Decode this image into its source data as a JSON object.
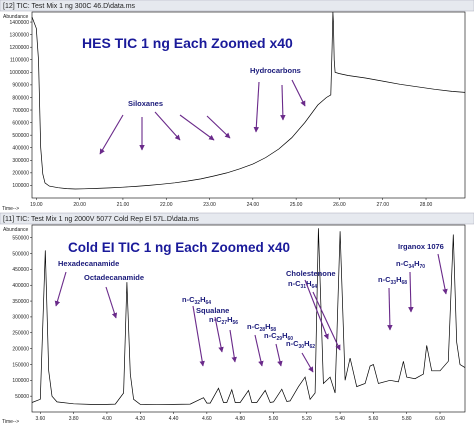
{
  "chart_data": [
    {
      "type": "line",
      "panel_title": "[12] TIC: Test Mix 1 ng 300C 46.D\\data.ms",
      "title": "HES TIC 1 ng Each Zoomed x40",
      "ylabel": "Abundance",
      "xlabel": "Time-->",
      "xlim": [
        18.9,
        28.9
      ],
      "ylim": [
        0,
        1480000
      ],
      "x_ticks": [
        "19.00",
        "20.00",
        "21.00",
        "22.00",
        "23.00",
        "24.00",
        "25.00",
        "26.00",
        "27.00",
        "28.00"
      ],
      "y_ticks": [
        "100000",
        "200000",
        "300000",
        "400000",
        "500000",
        "600000",
        "700000",
        "800000",
        "900000",
        "1000000",
        "1100000",
        "1200000",
        "1300000",
        "1400000"
      ],
      "series": [
        {
          "x": [
            18.9,
            19.0,
            19.05,
            19.1,
            19.15,
            19.2,
            19.3,
            19.5,
            19.7,
            19.9,
            20.1,
            20.4,
            20.7,
            21.0,
            21.3,
            21.6,
            21.9,
            22.2,
            22.5,
            22.8,
            23.1,
            23.4,
            23.7,
            24.0,
            24.3,
            24.6,
            24.9,
            25.2,
            25.5,
            25.7,
            25.8,
            25.83,
            25.85,
            25.86,
            25.88,
            25.9,
            26.0,
            26.2,
            26.6,
            27.0,
            27.4,
            27.8,
            28.2,
            28.6,
            28.9
          ],
          "values": [
            1440000,
            1350000,
            1100000,
            400000,
            190000,
            120000,
            95000,
            82000,
            75000,
            72000,
            73000,
            76000,
            80000,
            86000,
            92000,
            100000,
            110000,
            121000,
            135000,
            152000,
            175000,
            200000,
            232000,
            270000,
            322000,
            390000,
            480000,
            600000,
            740000,
            800000,
            820000,
            1200000,
            1480000,
            1400000,
            1100000,
            1000000,
            990000,
            975000,
            955000,
            930000,
            905000,
            885000,
            865000,
            848000,
            840000
          ]
        }
      ],
      "annotations": [
        {
          "text": "Siloxanes",
          "arrows_to": [
            19.7,
            20.6,
            21.3,
            22.2,
            23.0
          ]
        },
        {
          "text": "Hydrocarbons",
          "arrows_to": [
            24.2,
            24.6,
            25.3
          ]
        }
      ]
    },
    {
      "type": "line",
      "panel_title": "[11] TIC: Test Mix 1 ng 2000V 5077 Cold Rep El 57L.D\\data.ms",
      "title": "Cold EI TIC 1 ng Each Zoomed x40",
      "ylabel": "Abundance",
      "xlabel": "Time-->",
      "xlim": [
        3.55,
        6.15
      ],
      "ylim": [
        0,
        590000
      ],
      "x_ticks": [
        "3.60",
        "3.80",
        "4.00",
        "4.20",
        "4.40",
        "4.60",
        "4.80",
        "5.00",
        "5.20",
        "5.40",
        "5.60",
        "5.80",
        "6.00"
      ],
      "y_ticks": [
        "50000",
        "100000",
        "150000",
        "200000",
        "250000",
        "300000",
        "350000",
        "400000",
        "450000",
        "500000",
        "550000"
      ],
      "series": [
        {
          "x": [
            3.55,
            3.6,
            3.63,
            3.65,
            3.67,
            3.7,
            3.8,
            3.9,
            4.0,
            4.05,
            4.1,
            4.12,
            4.14,
            4.16,
            4.2,
            4.3,
            4.4,
            4.5,
            4.58,
            4.6,
            4.62,
            4.67,
            4.7,
            4.72,
            4.75,
            4.77,
            4.8,
            4.85,
            4.87,
            4.9,
            4.95,
            4.98,
            5.0,
            5.05,
            5.08,
            5.1,
            5.15,
            5.19,
            5.22,
            5.25,
            5.27,
            5.3,
            5.34,
            5.37,
            5.4,
            5.43,
            5.46,
            5.5,
            5.55,
            5.58,
            5.6,
            5.63,
            5.7,
            5.75,
            5.78,
            5.8,
            5.85,
            5.9,
            5.92,
            5.95,
            6.0,
            6.05,
            6.08,
            6.1,
            6.12,
            6.15
          ],
          "values": [
            30000,
            40000,
            510000,
            130000,
            50000,
            32000,
            26000,
            24000,
            24000,
            25000,
            60000,
            410000,
            120000,
            40000,
            24000,
            23000,
            24000,
            25000,
            45000,
            28000,
            28000,
            75000,
            30000,
            30000,
            70000,
            30000,
            30000,
            68000,
            30000,
            30000,
            68000,
            30000,
            32000,
            72000,
            33000,
            35000,
            80000,
            110000,
            40000,
            60000,
            580000,
            90000,
            110000,
            60000,
            570000,
            100000,
            170000,
            80000,
            90000,
            145000,
            150000,
            90000,
            100000,
            95000,
            160000,
            110000,
            105000,
            120000,
            210000,
            130000,
            130000,
            160000,
            560000,
            220000,
            150000,
            140000
          ]
        }
      ],
      "annotations": [
        {
          "text": "Hexadecanamide"
        },
        {
          "text": "Octadecanamide"
        },
        {
          "text": "n-C32H64"
        },
        {
          "text": "Squalane"
        },
        {
          "text": "n-C27H56"
        },
        {
          "text": "n-C28H58"
        },
        {
          "text": "n-C29H60"
        },
        {
          "text": "n-C30H62"
        },
        {
          "text": "Cholestenone"
        },
        {
          "text": "n-C31H64"
        },
        {
          "text": "n-C33H68"
        },
        {
          "text": "n-C34H70"
        },
        {
          "text": "Irganox 1076"
        }
      ]
    }
  ],
  "labels": {
    "top_title": "HES TIC 1 ng Each Zoomed x40",
    "siloxanes": "Siloxanes",
    "hydrocarbons": "Hydrocarbons",
    "bottom_title": "Cold EI TIC 1 ng Each Zoomed x40",
    "hexadecanamide": "Hexadecanamide",
    "octadecanamide": "Octadecanamide",
    "squalane": "Squalane",
    "cholestenone": "Cholestenone",
    "irganox": "Irganox 1076",
    "c32_n": "n-C",
    "c32_a": "32",
    "c32_h": "H",
    "c32_b": "64",
    "c27_n": "n-C",
    "c27_a": "27",
    "c27_h": "H",
    "c27_b": "56",
    "c28_n": "n-C",
    "c28_a": "28",
    "c28_h": "H",
    "c28_b": "58",
    "c29_n": "n-C",
    "c29_a": "29",
    "c29_h": "H",
    "c29_b": "60",
    "c30_n": "n-C",
    "c30_a": "30",
    "c30_h": "H",
    "c30_b": "62",
    "c31_n": "n-C",
    "c31_a": "31",
    "c31_h": "H",
    "c31_b": "64",
    "c33_n": "n-C",
    "c33_a": "33",
    "c33_h": "H",
    "c33_b": "68",
    "c34_n": "n-C",
    "c34_a": "34",
    "c34_h": "H",
    "c34_b": "70"
  },
  "colors": {
    "trace": "#000000",
    "title": "#1a1a9a",
    "annotation": "#1a1a7a",
    "arrow": "#6a2a8a",
    "titlebar": "#e6e9ef"
  }
}
